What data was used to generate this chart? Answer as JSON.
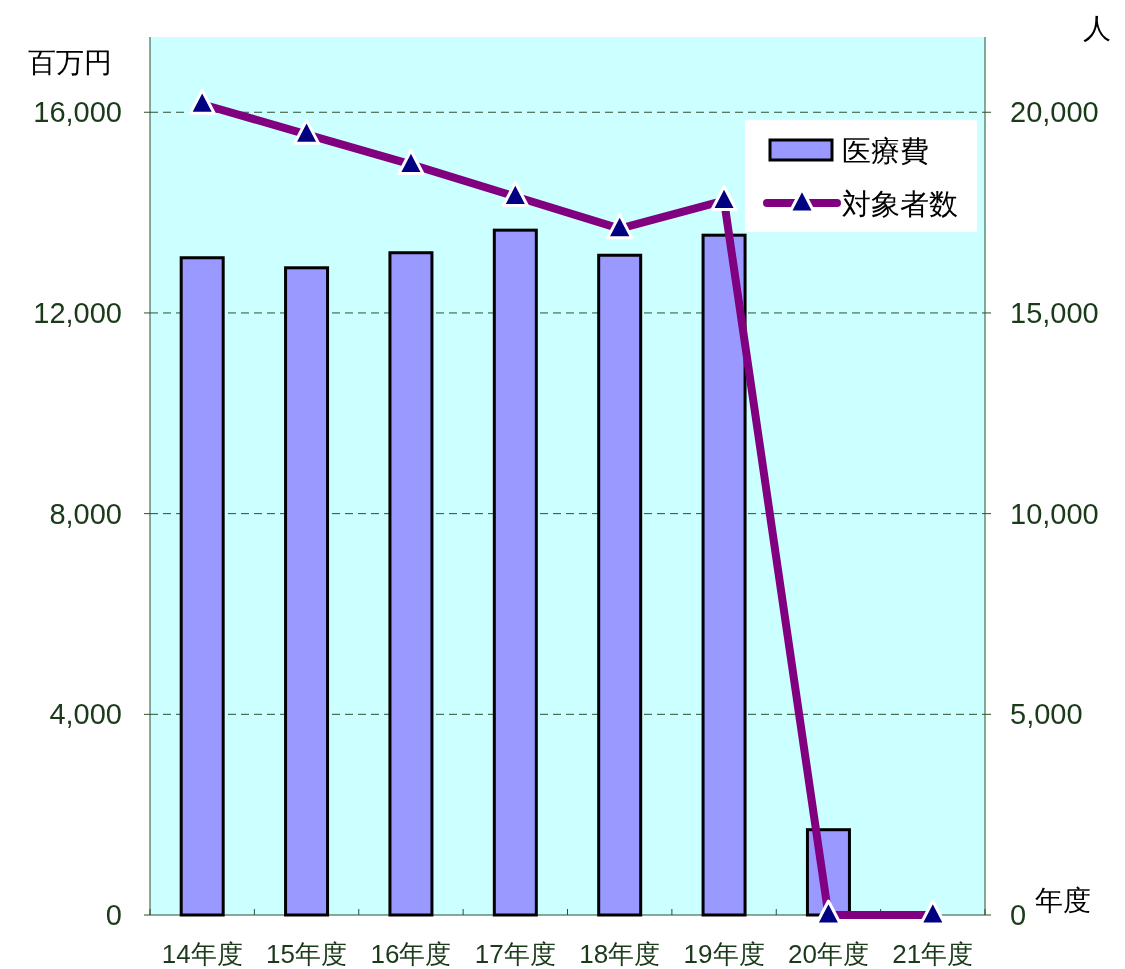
{
  "chart_data": {
    "type": "bar",
    "xlabel": "年度",
    "ylabel": "百万円",
    "y2label": "人",
    "categories": [
      "14年度",
      "15年度",
      "16年度",
      "17年度",
      "18年度",
      "19年度",
      "20年度",
      "21年度"
    ],
    "series": [
      {
        "name": "医療費",
        "color": "#9999ff",
        "values": [
          13100,
          12900,
          13200,
          13650,
          13150,
          13550,
          1700,
          0
        ]
      },
      {
        "name": "対象者数",
        "type": "line",
        "axis": "y2",
        "color": "#800080",
        "marker": "triangle",
        "values": [
          20200,
          19450,
          18700,
          17900,
          17100,
          17800,
          0,
          0
        ]
      }
    ],
    "ylim": [
      0,
      17500
    ],
    "yticks": [
      {
        "value": 0,
        "label": "0"
      },
      {
        "value": 4000,
        "label": "4,000"
      },
      {
        "value": 8000,
        "label": "8,000"
      },
      {
        "value": 12000,
        "label": "12,000"
      },
      {
        "value": 16000,
        "label": "16,000"
      }
    ],
    "y2lim": [
      0,
      21875
    ],
    "y2ticks": [
      {
        "value": 0,
        "label": "0"
      },
      {
        "value": 5000,
        "label": "5,000"
      },
      {
        "value": 10000,
        "label": "10,000"
      },
      {
        "value": 15000,
        "label": "15,000"
      },
      {
        "value": 20000,
        "label": "20,000"
      }
    ],
    "grid": "y",
    "legend": "top right"
  }
}
